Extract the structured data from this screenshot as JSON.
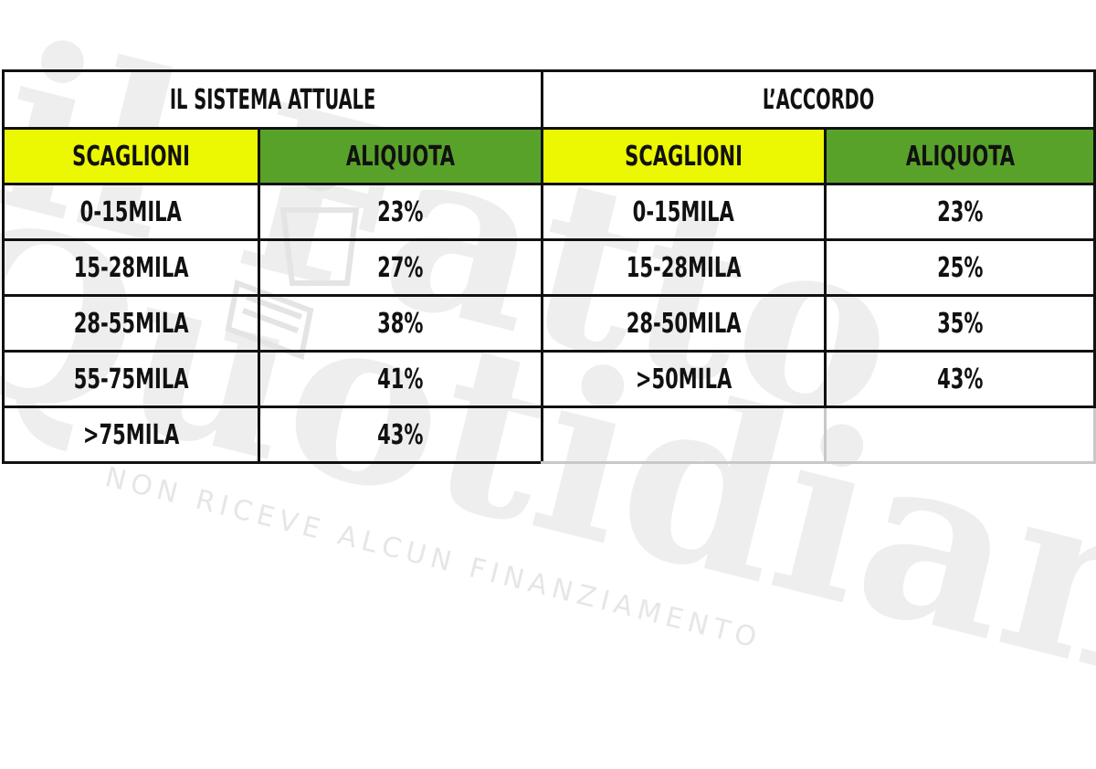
{
  "watermark": {
    "line1": "il Fatto",
    "line2": "Quotidiano",
    "tagline": "NON RICEVE ALCUN FINANZIAMENTO"
  },
  "left_table": {
    "title": "IL SISTEMA ATTUALE",
    "headers": [
      "SCAGLIONI",
      "ALIQUOTA"
    ],
    "rows": [
      [
        "0-15MILA",
        "23%"
      ],
      [
        "15-28MILA",
        "27%"
      ],
      [
        "28-55MILA",
        "38%"
      ],
      [
        "55-75MILA",
        "41%"
      ],
      [
        ">75MILA",
        "43%"
      ]
    ]
  },
  "right_table": {
    "title": "L’ACCORDO",
    "headers": [
      "SCAGLIONI",
      "ALIQUOTA"
    ],
    "rows": [
      [
        "0-15MILA",
        "23%"
      ],
      [
        "15-28MILA",
        "25%"
      ],
      [
        "28-50MILA",
        "35%"
      ],
      [
        ">50MILA",
        "43%"
      ],
      [
        "",
        ""
      ]
    ]
  },
  "colors": {
    "header_yellow": "#ecf702",
    "header_green": "#58a22a",
    "border": "#111111"
  }
}
